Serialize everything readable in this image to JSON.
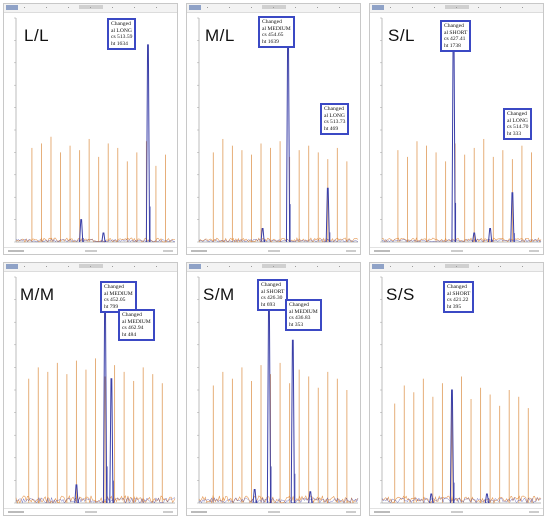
{
  "chart_data": [
    {
      "type": "line",
      "genotype": "L/L",
      "xlim": [
        0,
        100
      ],
      "ylim": [
        0,
        100
      ],
      "ladder_x": [
        10,
        16,
        22,
        28,
        34,
        40,
        46,
        52,
        58,
        64,
        70,
        76,
        82,
        88,
        94
      ],
      "ladder_h": [
        42,
        44,
        47,
        40,
        43,
        41,
        46,
        38,
        44,
        42,
        36,
        40,
        45,
        34,
        39
      ],
      "series": [
        {
          "color": "#3a3fa8",
          "peaks": [
            [
              83,
              88
            ],
            [
              55,
              4
            ],
            [
              41,
              10
            ]
          ]
        }
      ],
      "annotations": [
        {
          "lines": [
            "Changed",
            "al LONG",
            "cs 513.59",
            "ht 1634"
          ]
        }
      ]
    },
    {
      "type": "line",
      "genotype": "M/L",
      "xlim": [
        0,
        100
      ],
      "ylim": [
        0,
        100
      ],
      "ladder_x": [
        9,
        15,
        21,
        27,
        33,
        39,
        45,
        51,
        57,
        63,
        69,
        75,
        81,
        87,
        93
      ],
      "ladder_h": [
        40,
        46,
        43,
        41,
        39,
        44,
        42,
        45,
        38,
        41,
        43,
        40,
        37,
        42,
        36
      ],
      "series": [
        {
          "color": "#3a3fa8",
          "peaks": [
            [
              56,
              94
            ],
            [
              81,
              24
            ],
            [
              40,
              6
            ]
          ]
        }
      ],
      "annotations": [
        {
          "lines": [
            "Changed",
            "al MEDIUM",
            "cs 454.65",
            "ht 1639"
          ]
        },
        {
          "lines": [
            "Changed",
            "al LONG",
            "cs 513.73",
            "ht 469"
          ]
        }
      ]
    },
    {
      "type": "line",
      "genotype": "S/L",
      "xlim": [
        0,
        100
      ],
      "ylim": [
        0,
        100
      ],
      "ladder_x": [
        10,
        16,
        22,
        28,
        34,
        40,
        46,
        52,
        58,
        64,
        70,
        76,
        82,
        88,
        94
      ],
      "ladder_h": [
        41,
        38,
        45,
        43,
        40,
        36,
        44,
        39,
        42,
        46,
        38,
        41,
        37,
        43,
        40
      ],
      "series": [
        {
          "color": "#3a3fa8",
          "peaks": [
            [
              45,
              97
            ],
            [
              68,
              6
            ],
            [
              82,
              22
            ],
            [
              58,
              4
            ]
          ]
        }
      ],
      "annotations": [
        {
          "lines": [
            "Changed",
            "al SHORT",
            "cs 427.41",
            "ht 1738"
          ]
        },
        {
          "lines": [
            "Changed",
            "al LONG",
            "cs 514.70",
            "ht 333"
          ]
        }
      ]
    },
    {
      "type": "line",
      "genotype": "M/M",
      "xlim": [
        0,
        100
      ],
      "ylim": [
        0,
        100
      ],
      "ladder_x": [
        8,
        14,
        20,
        26,
        32,
        38,
        44,
        50,
        56,
        62,
        68,
        74,
        80,
        86,
        92
      ],
      "ladder_h": [
        55,
        60,
        58,
        62,
        57,
        63,
        59,
        64,
        56,
        61,
        58,
        54,
        60,
        57,
        53
      ],
      "series": [
        {
          "color": "#3a3fa8",
          "peaks": [
            [
              56,
              90
            ],
            [
              60,
              55
            ],
            [
              38,
              8
            ]
          ]
        }
      ],
      "annotations": [
        {
          "lines": [
            "Changed",
            "al MEDIUM",
            "cs 452.05",
            "ht 799"
          ]
        },
        {
          "lines": [
            "Changed",
            "al MEDIUM",
            "cs 462.94",
            "ht 484"
          ]
        }
      ]
    },
    {
      "type": "line",
      "genotype": "S/M",
      "xlim": [
        0,
        100
      ],
      "ylim": [
        0,
        100
      ],
      "ladder_x": [
        9,
        15,
        21,
        27,
        33,
        39,
        45,
        51,
        57,
        63,
        69,
        75,
        81,
        87,
        93
      ],
      "ladder_h": [
        52,
        58,
        55,
        60,
        54,
        61,
        57,
        62,
        53,
        59,
        56,
        51,
        58,
        55,
        50
      ],
      "series": [
        {
          "color": "#3a3fa8",
          "peaks": [
            [
              44,
              90
            ],
            [
              59,
              72
            ],
            [
              35,
              6
            ],
            [
              70,
              5
            ]
          ]
        }
      ],
      "annotations": [
        {
          "lines": [
            "Changed",
            "al SHORT",
            "cs 426.30",
            "ht 693"
          ]
        },
        {
          "lines": [
            "Changed",
            "al MEDIUM",
            "cs 436.83",
            "ht 353"
          ]
        }
      ]
    },
    {
      "type": "line",
      "genotype": "S/S",
      "xlim": [
        0,
        100
      ],
      "ylim": [
        0,
        100
      ],
      "ladder_x": [
        8,
        14,
        20,
        26,
        32,
        38,
        44,
        50,
        56,
        62,
        68,
        74,
        80,
        86,
        92
      ],
      "ladder_h": [
        44,
        52,
        49,
        55,
        47,
        53,
        50,
        56,
        46,
        51,
        48,
        43,
        50,
        47,
        42
      ],
      "series": [
        {
          "color": "#3a3fa8",
          "peaks": [
            [
              44,
              50
            ],
            [
              31,
              4
            ],
            [
              66,
              4
            ]
          ]
        }
      ],
      "annotations": [
        {
          "lines": [
            "Changed",
            "al SHORT",
            "cs 421.22",
            "ht 395"
          ]
        }
      ]
    }
  ],
  "colors": {
    "ladder": "#e3a66b",
    "trace": "#3a3fa8",
    "noise": "#e07f2a",
    "callout_border": "#3b49c4",
    "axis": "#a0a0a0"
  }
}
